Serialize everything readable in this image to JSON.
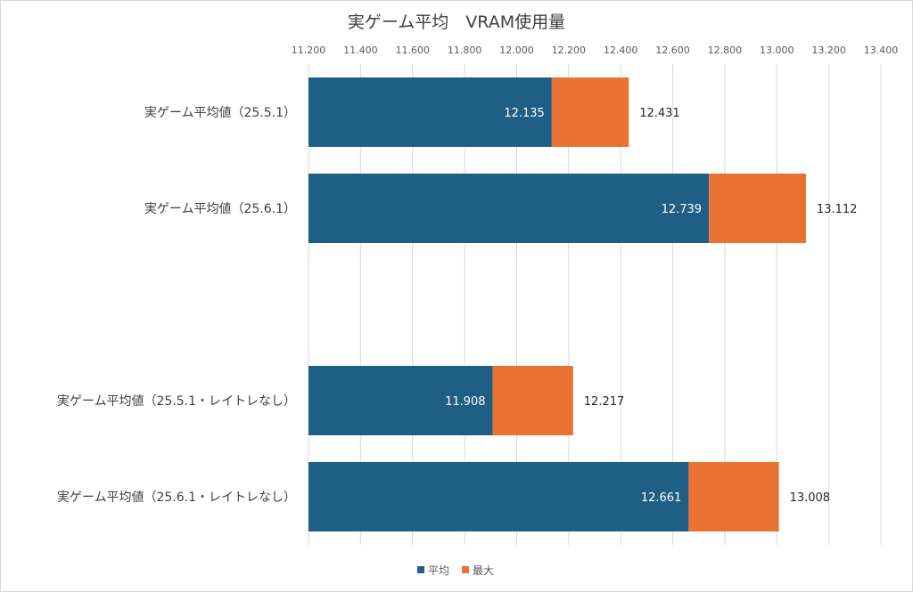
{
  "chart_data": {
    "type": "bar",
    "orientation": "horizontal",
    "title": "実ゲーム平均　VRAM使用量",
    "xlim": [
      11.2,
      13.4
    ],
    "tick_labels": [
      "11.200",
      "11.400",
      "11.600",
      "11.800",
      "12.000",
      "12.200",
      "12.400",
      "12.600",
      "12.800",
      "13.000",
      "13.200",
      "13.400"
    ],
    "grid": true,
    "legend_position": "bottom",
    "categories": [
      "実ゲーム平均値（25.5.1）",
      "実ゲーム平均値（25.6.1）",
      "",
      "実ゲーム平均値（25.5.1・レイトレなし）",
      "実ゲーム平均値（25.6.1・レイトレなし）"
    ],
    "series": [
      {
        "name": "平均",
        "color": "#1f5f86",
        "values": [
          12.135,
          12.739,
          null,
          11.908,
          12.661
        ],
        "labels": [
          "12.135",
          "12.739",
          "",
          "11.908",
          "12.661"
        ]
      },
      {
        "name": "最大",
        "color": "#e97132",
        "values": [
          12.431,
          13.112,
          null,
          12.217,
          13.008
        ],
        "labels": [
          "12.431",
          "13.112",
          "",
          "12.217",
          "13.008"
        ]
      }
    ]
  }
}
